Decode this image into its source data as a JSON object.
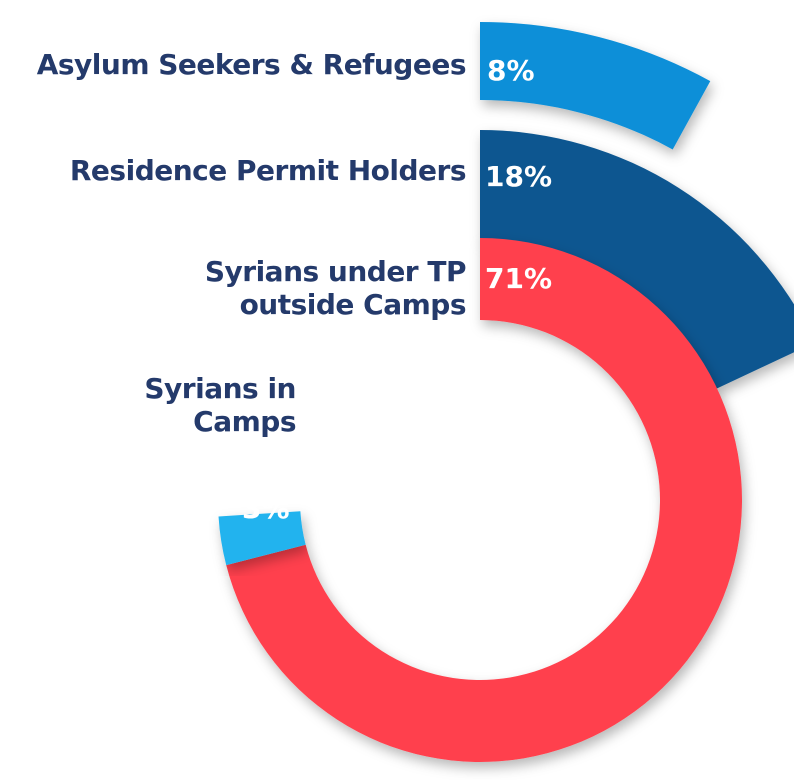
{
  "chart_data": {
    "type": "radial-bar",
    "title": "",
    "series": [
      {
        "label": "Asylum Seekers & Refugees",
        "value": 8,
        "value_label": "8%",
        "color": "#0b8fd8"
      },
      {
        "label": "Residence Permit Holders",
        "value": 18,
        "value_label": "18%",
        "color": "#0a5690"
      },
      {
        "label": "Syrians under TP outside Camps",
        "value": 71,
        "value_label": "71%",
        "color": "#ff414d"
      },
      {
        "label": "Syrians in Camps",
        "value": 3,
        "value_label": "3%",
        "color": "#22b3ee"
      }
    ]
  }
}
